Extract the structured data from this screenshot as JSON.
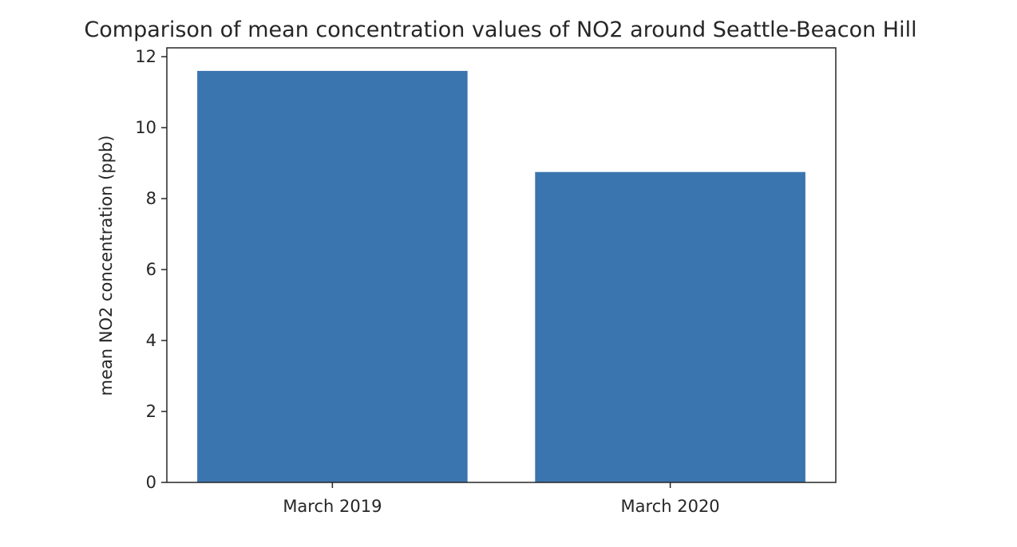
{
  "chart_data": {
    "type": "bar",
    "title": "Comparison of mean concentration values of NO2 around Seattle-Beacon Hill",
    "xlabel": "",
    "ylabel": "mean NO2 concentration (ppb)",
    "categories": [
      "March 2019",
      "March 2020"
    ],
    "values": [
      11.6,
      8.75
    ],
    "ylim": [
      0,
      12.25
    ],
    "yticks": [
      0,
      2,
      4,
      6,
      8,
      10,
      12
    ],
    "grid": false,
    "legend": "none",
    "bar_color": "#3b75af",
    "axis_color": "#262626"
  }
}
